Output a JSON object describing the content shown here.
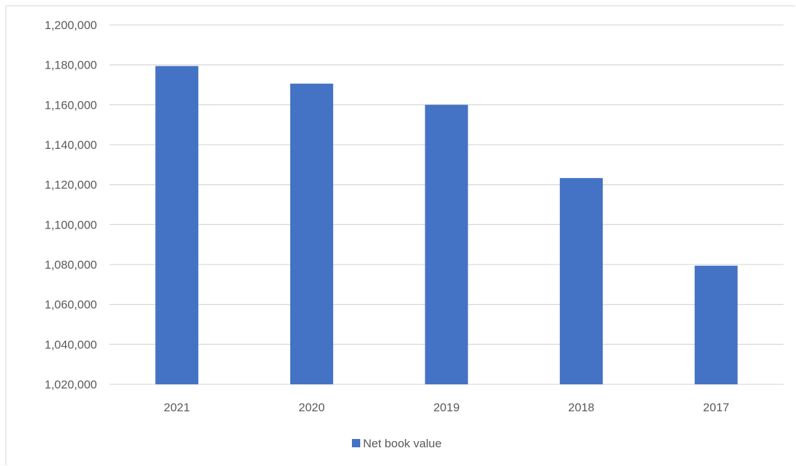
{
  "chart_data": {
    "type": "bar",
    "categories": [
      "2021",
      "2020",
      "2019",
      "2018",
      "2017"
    ],
    "series": [
      {
        "name": "Net book value",
        "values": [
          1179400,
          1170600,
          1160000,
          1123300,
          1079400
        ],
        "color": "#4472c4"
      }
    ],
    "yticks": [
      "1,020,000",
      "1,040,000",
      "1,060,000",
      "1,080,000",
      "1,100,000",
      "1,120,000",
      "1,140,000",
      "1,160,000",
      "1,180,000",
      "1,200,000"
    ],
    "ylim": [
      1020000,
      1200000
    ],
    "grid": true,
    "legend_position": "bottom",
    "colors": {
      "bar": "#4472c4",
      "grid": "#d9d9d9",
      "text": "#595959"
    }
  }
}
